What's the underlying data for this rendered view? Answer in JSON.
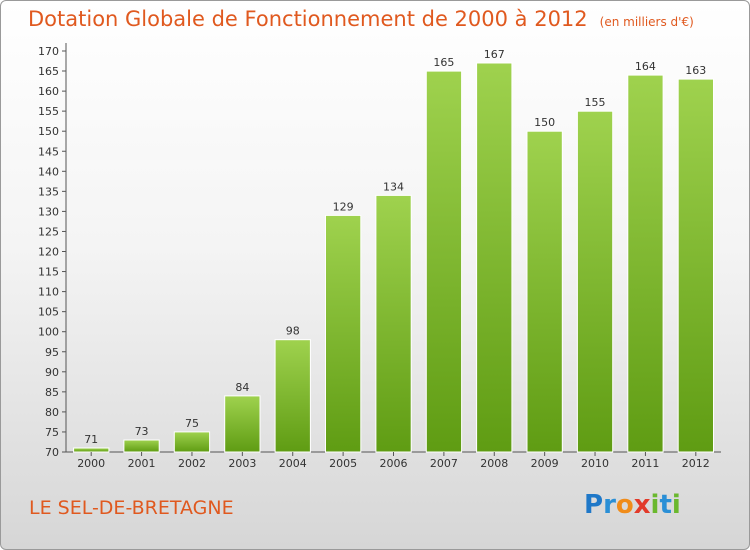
{
  "title": "Dotation Globale de Fonctionnement de 2000 à 2012",
  "unit": "(en milliers d'€)",
  "location": "LE SEL-DE-BRETAGNE",
  "logo": {
    "letters": [
      "P",
      "r",
      "o",
      "x",
      "i",
      "t",
      "i"
    ],
    "colors": [
      "#1f78c8",
      "#2a8fd6",
      "#f08c1a",
      "#e23a2a",
      "#6ab82e",
      "#2a8fd6",
      "#6ab82e"
    ]
  },
  "colors": {
    "bar_top": "#9fd24e",
    "bar_bottom": "#5f9c13",
    "title": "#e0591f"
  },
  "chart_data": {
    "type": "bar",
    "categories": [
      "2000",
      "2001",
      "2002",
      "2003",
      "2004",
      "2005",
      "2006",
      "2007",
      "2008",
      "2009",
      "2010",
      "2011",
      "2012"
    ],
    "values": [
      71,
      73,
      75,
      84,
      98,
      129,
      134,
      165,
      167,
      150,
      155,
      164,
      163
    ],
    "ylim": [
      70,
      170
    ],
    "ytick_step": 5,
    "grid": false
  }
}
